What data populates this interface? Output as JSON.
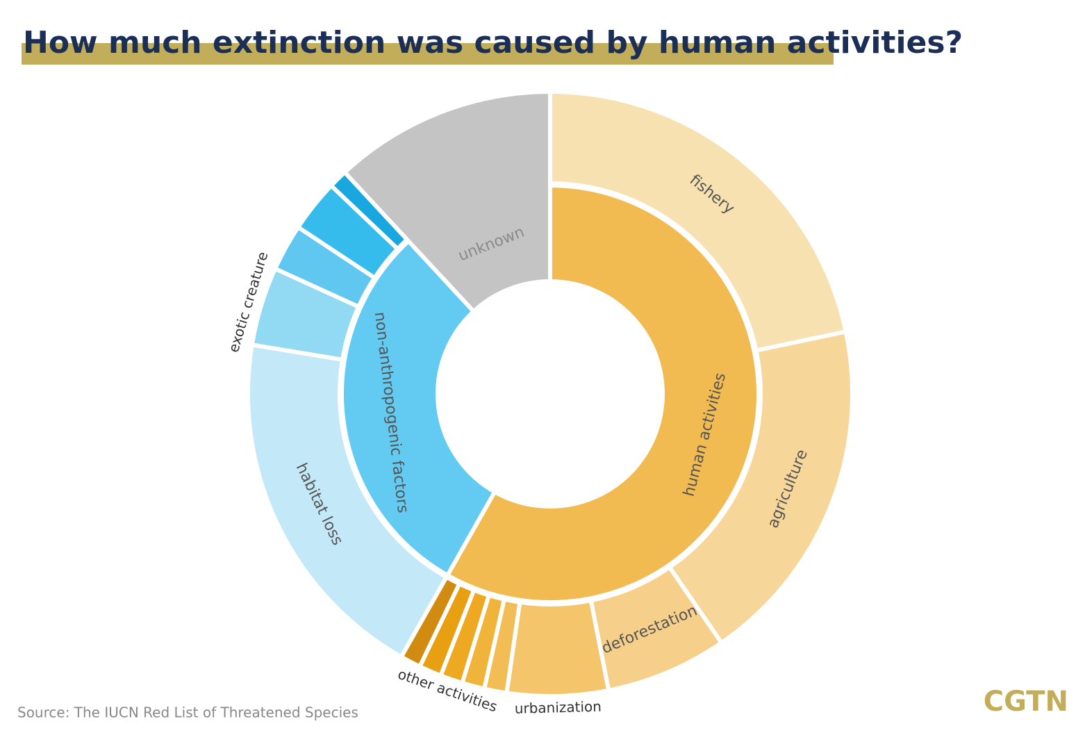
{
  "chart_data": {
    "type": "sunburst",
    "title": "How much extinction was caused by human activities?",
    "source": "Source: The IUCN Red List of Threatened Species",
    "logo": "CGTN",
    "inner": {
      "categories": [
        "human activities",
        "non-anthropogenic factors",
        "unknown"
      ],
      "values": [
        58.2,
        29.9,
        11.9
      ],
      "colors": [
        "#f1bb52",
        "#63caf2",
        "#c4c4c4"
      ],
      "full_depth": [
        false,
        false,
        true
      ]
    },
    "outer": {
      "categories": [
        "fishery",
        "agriculture",
        "deforestation",
        "urbanization",
        null,
        null,
        "other activities",
        null,
        null,
        "habitat loss",
        "exotic creature",
        null,
        null,
        null
      ],
      "values": [
        21.7,
        18.7,
        6.5,
        5.4,
        1.2,
        1.2,
        1.2,
        1.2,
        1.1,
        19.4,
        4.2,
        2.5,
        2.8,
        1.0
      ],
      "colors": [
        "#f8e1b0",
        "#f7d699",
        "#f6d08a",
        "#f4c56a",
        "#f2bd55",
        "#f0b43a",
        "#eea822",
        "#e8a012",
        "#d08b10",
        "#c3e9f8",
        "#92d9f4",
        "#5fc7f0",
        "#36bcec",
        "#18a8df"
      ]
    }
  }
}
